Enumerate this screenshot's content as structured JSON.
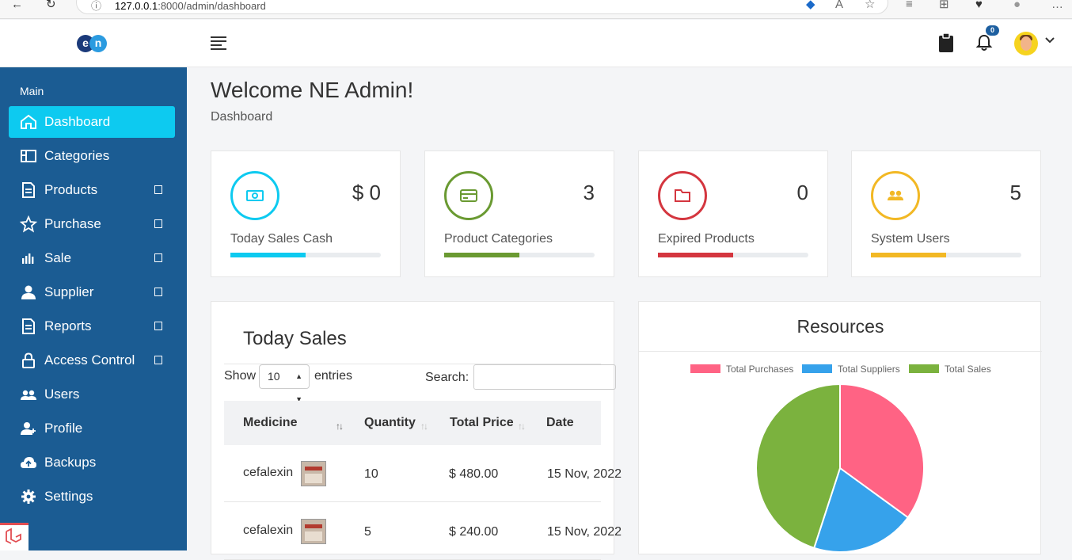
{
  "browser": {
    "url_host": "127.0.0.1",
    "url_rest": ":8000/admin/dashboard"
  },
  "header": {
    "logo_left": "e",
    "logo_right": "n",
    "notification_count": "0"
  },
  "sidebar": {
    "heading": "Main",
    "items": [
      {
        "label": "Dashboard",
        "icon": "home-icon"
      },
      {
        "label": "Categories",
        "icon": "layout-icon"
      },
      {
        "label": "Products",
        "icon": "document-icon"
      },
      {
        "label": "Purchase",
        "icon": "star-icon"
      },
      {
        "label": "Sale",
        "icon": "bar-chart-icon"
      },
      {
        "label": "Supplier",
        "icon": "user-icon"
      },
      {
        "label": "Reports",
        "icon": "document-icon"
      },
      {
        "label": "Access Control",
        "icon": "lock-icon"
      },
      {
        "label": "Users",
        "icon": "users-icon"
      },
      {
        "label": "Profile",
        "icon": "user-plus-icon"
      },
      {
        "label": "Backups",
        "icon": "cloud-upload-icon"
      },
      {
        "label": "Settings",
        "icon": "gear-icon"
      }
    ]
  },
  "page": {
    "title": "Welcome NE Admin!",
    "breadcrumb": "Dashboard"
  },
  "stats": [
    {
      "value": "$ 0",
      "title": "Today Sales Cash",
      "color": "#0dcaf0",
      "progress": 0.5
    },
    {
      "value": "3",
      "title": "Product Categories",
      "color": "#6a9a32",
      "progress": 0.5
    },
    {
      "value": "0",
      "title": "Expired Products",
      "color": "#d4363f",
      "progress": 0.5
    },
    {
      "value": "5",
      "title": "System Users",
      "color": "#f2b824",
      "progress": 0.5
    }
  ],
  "sales": {
    "title": "Today Sales",
    "show_label": "Show",
    "page_length": "10",
    "entries_label": "entries",
    "search_label": "Search:",
    "columns": [
      "Medicine",
      "Quantity",
      "Total Price",
      "Date"
    ],
    "rows": [
      {
        "medicine": "cefalexin",
        "quantity": "10",
        "total_price": "$ 480.00",
        "date": "15 Nov, 2022"
      },
      {
        "medicine": "cefalexin",
        "quantity": "5",
        "total_price": "$ 240.00",
        "date": "15 Nov, 2022"
      }
    ]
  },
  "chart_data": {
    "type": "pie",
    "title": "Resources",
    "labels": [
      "Total Purchases",
      "Total Suppliers",
      "Total Sales"
    ],
    "values": [
      35,
      20,
      45
    ],
    "colors": [
      "#ff6384",
      "#36a2eb",
      "#7bb23e"
    ]
  }
}
